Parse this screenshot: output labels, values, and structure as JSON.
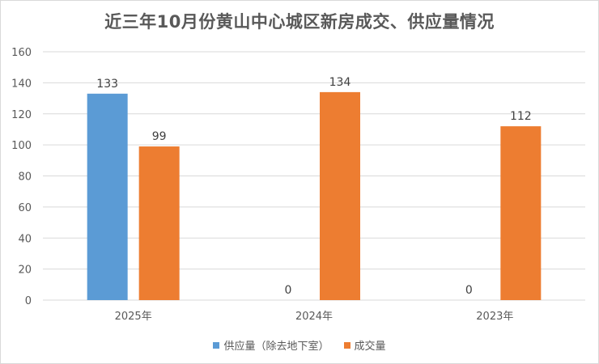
{
  "colors": {
    "supply": "#5B9BD5",
    "transactions": "#ED7D31",
    "grid": "#d9d9d9",
    "text": "#595959"
  },
  "chart_data": {
    "type": "bar",
    "title": "近三年10月份黄山中心城区新房成交、供应量情况",
    "categories": [
      "2025年",
      "2024年",
      "2023年"
    ],
    "series": [
      {
        "name": "供应量（除去地下室）",
        "values": [
          133,
          null,
          null
        ]
      },
      {
        "name": "成交量",
        "values": [
          99,
          134,
          112
        ]
      }
    ],
    "zero_labels": [
      "0",
      "0"
    ],
    "ylim": [
      0,
      160
    ],
    "yticks": [
      0,
      20,
      40,
      60,
      80,
      100,
      120,
      140,
      160
    ],
    "grid": true,
    "legend": "bottom"
  }
}
